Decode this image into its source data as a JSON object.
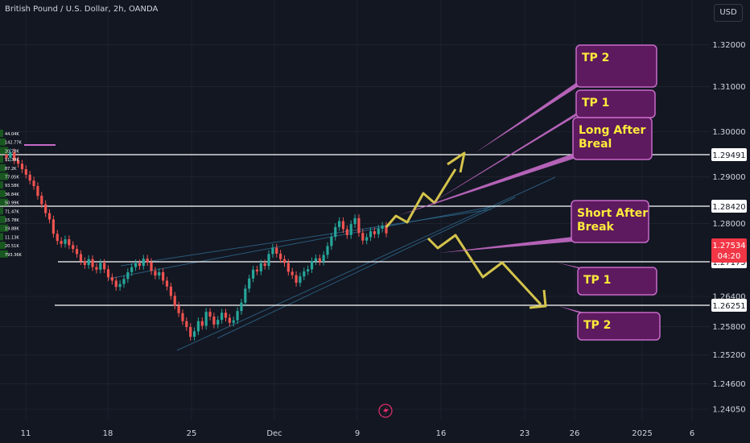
{
  "header": {
    "title": "British Pound / U.S. Dollar, 2h, OANDA",
    "currency": "USD"
  },
  "colors": {
    "background": "#131722",
    "up": "#26a69a",
    "down": "#ef5350",
    "grid": "#1e222d",
    "axis_text": "#d1d4dc",
    "level_line": "#ffffff",
    "arrow": "#d4c44b",
    "callout_fill": "#5d1a5e",
    "callout_border": "#c66ac8",
    "callout_text": "#ffeb3b",
    "trend": "#2f6b8f",
    "price_badge": "#f23645"
  },
  "chart_data": {
    "type": "candlestick",
    "y_axis": {
      "range": [
        1.237,
        1.327
      ],
      "ticks": [
        "1.32000",
        "1.31000",
        "1.30000",
        "1.29000",
        "1.28000",
        "1.26400",
        "1.25800",
        "1.25200",
        "1.24600",
        "1.24050"
      ]
    },
    "x_axis": {
      "ticks": [
        "11",
        "18",
        "25",
        "Dec",
        "9",
        "16",
        "23",
        "26",
        "2025",
        "6"
      ]
    },
    "price_levels": [
      {
        "value": 1.29491,
        "label": "1.29491"
      },
      {
        "value": 1.2842,
        "label": "1.28420"
      },
      {
        "value": 1.27175,
        "label": "1.27175"
      },
      {
        "value": 1.26251,
        "label": "1.26251"
      }
    ],
    "current_price": {
      "value": 1.27534,
      "label": "1.27534",
      "countdown": "04:20"
    },
    "volume_profile_labels": [
      "44.04K",
      "142.77K",
      "20.78K",
      "51.39K",
      "87.2K",
      "77.05K",
      "93.58K",
      "36.84K",
      "50.99K",
      "71.47K",
      "15.78K",
      "19.88K",
      "11.13K",
      "20.51K",
      "793.36K"
    ],
    "candles_close": [
      1.2932,
      1.2945,
      1.2926,
      1.2918,
      1.2905,
      1.2892,
      1.2878,
      1.2865,
      1.2842,
      1.2822,
      1.2801,
      1.2786,
      1.2752,
      1.2735,
      1.2728,
      1.2739,
      1.2725,
      1.2716,
      1.2704,
      1.2687,
      1.2678,
      1.2692,
      1.2673,
      1.2667,
      1.2683,
      1.2668,
      1.2649,
      1.2641,
      1.2626,
      1.2633,
      1.2645,
      1.2661,
      1.2673,
      1.2682,
      1.2676,
      1.2693,
      1.2685,
      1.2664,
      1.2653,
      1.2661,
      1.2641,
      1.2627,
      1.2605,
      1.2582,
      1.2564,
      1.2545,
      1.2531,
      1.2508,
      1.2521,
      1.2545,
      1.2534,
      1.2567,
      1.2556,
      1.2537,
      1.2548,
      1.2565,
      1.2553,
      1.2541,
      1.2547,
      1.2569,
      1.2589,
      1.2622,
      1.2646,
      1.2667,
      1.2663,
      1.2682,
      1.2676,
      1.2704,
      1.2719,
      1.2705,
      1.2692,
      1.2683,
      1.2662,
      1.2654,
      1.2636,
      1.2651,
      1.2663,
      1.2668,
      1.2687,
      1.2694,
      1.2686,
      1.2702,
      1.2723,
      1.2745,
      1.2768,
      1.2782,
      1.2763,
      1.2749,
      1.2775,
      1.2789,
      1.2754,
      1.2736,
      1.2744,
      1.2758,
      1.2751,
      1.2764,
      1.2771,
      1.2753
    ],
    "annotations": {
      "callouts": [
        {
          "text": "TP 2"
        },
        {
          "text": "TP 1"
        },
        {
          "text": "Long After Breal"
        },
        {
          "text": "Short After Break"
        },
        {
          "text": "TP 1"
        },
        {
          "text": "TP 2"
        }
      ]
    }
  }
}
